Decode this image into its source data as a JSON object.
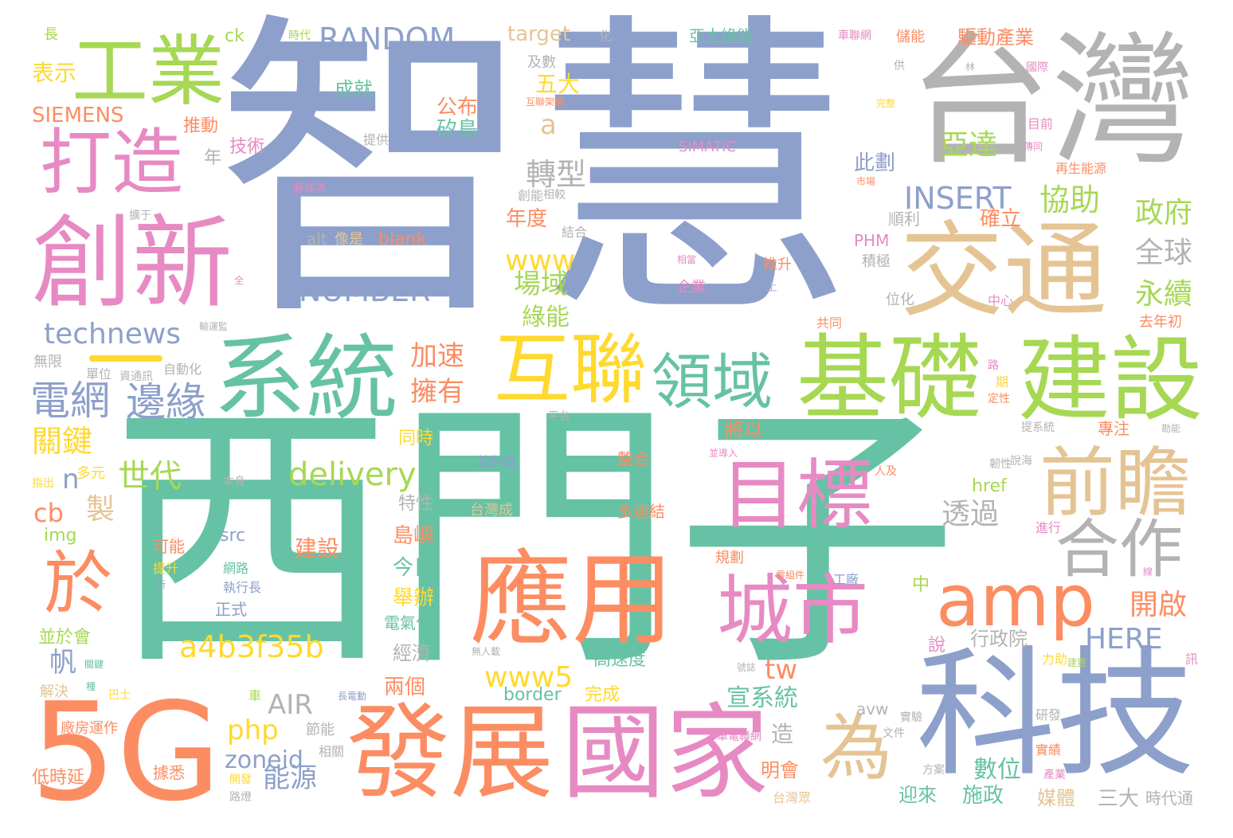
{
  "palette": {
    "green": "#66c2a5",
    "orange": "#fc8d62",
    "blue": "#8da0cb",
    "pink": "#e78ac3",
    "lime": "#a6d854",
    "yellow": "#ffd92f",
    "tan": "#e5c494",
    "gray": "#b3b3b3"
  },
  "words": {
    "w01": "智慧",
    "w02": "西門子",
    "w03": "台灣",
    "w04": "5G",
    "w05": "科技",
    "w06": "工業",
    "w07": "打造",
    "w08": "創新",
    "w09": "交通",
    "w10": "系統",
    "w11": "互聯",
    "w12": "基礎",
    "w13": "建設",
    "w14": "應用",
    "w15": "發展",
    "w16": "國家",
    "w17": "目標",
    "w18": "城市",
    "w19": "前瞻",
    "w20": "amp",
    "w21": "領域",
    "w22": "合作",
    "w23": "於",
    "w24": "為",
    "w25": "電網",
    "w26": "邊緣",
    "w27": "RANDOM",
    "w28": "INSERT",
    "w29": "NUMBER",
    "w30": "technews",
    "w31": "a4b3f35b",
    "w32": "delivery",
    "w33": "www",
    "w34": "www5",
    "w35": "亞達",
    "w36": "轉型",
    "w37": "協助",
    "w38": "政府",
    "w39": "全球",
    "w40": "永續",
    "w41": "場域",
    "w42": "綠能",
    "w43": "關鍵",
    "w44": "世代",
    "w45": "透過",
    "w46": "開啟",
    "w47": "HERE",
    "w48": "宣系統",
    "w49": "AIR",
    "w50": "能源",
    "w51": "php",
    "w52": "zoneid",
    "w53": "tw",
    "w54": "數位",
    "w55": "加速",
    "w56": "擁有",
    "w57": "表示",
    "w58": "SIEMENS",
    "w59": "target",
    "w60": "成就",
    "w61": "公布",
    "w62": "矽島",
    "w63": "五大",
    "w64": "a",
    "w65": "推動",
    "w66": "技術",
    "w67": "此劃",
    "w68": "年度",
    "w69": "確立",
    "w70": "驅動產業",
    "w71": "亞太綠能",
    "w72": "blank",
    "w73": "alt",
    "w74": "像是",
    "w75": "PHM",
    "w76": "SIMATIC",
    "w77": "n",
    "w78": "cb",
    "w79": "製",
    "w80": "帆",
    "w81": "img",
    "w82": "src",
    "w83": "建設",
    "w84": "島嶼",
    "w85": "今日",
    "w86": "舉辦",
    "w87": "經濟",
    "w88": "兩個",
    "w89": "border",
    "w90": "完成",
    "w91": "高速度",
    "w92": "行政院",
    "w93": "明會",
    "w94": "造",
    "w95": "迎來",
    "w96": "施政",
    "w97": "媒體",
    "w98": "三大",
    "w99": "時代通",
    "w100": "avw",
    "w101": "href",
    "w102": "多連結",
    "w103": "整合",
    "w104": "台灣成",
    "w105": "控制器",
    "w106": "將以",
    "w107": "同時",
    "w108": "特性",
    "w109": "並於會",
    "w110": "電氣化",
    "w111": "低時延",
    "w112": "廠房運作",
    "w113": "據悉",
    "w114": "無限",
    "w115": "自動化",
    "w116": "長",
    "w117": "ck",
    "w118": "化",
    "w119": "及數",
    "w120": "年",
    "w121": "提供",
    "w122": "創能",
    "w123": "順利",
    "w124": "積極",
    "w125": "企業",
    "w126": "推升",
    "w127": "上",
    "w128": "位化",
    "w129": "中心",
    "w130": "共同",
    "w131": "去年初",
    "w132": "再生能源",
    "w133": "目前",
    "w134": "專注",
    "w135": "多元",
    "w136": "可能",
    "w137": "提升",
    "w138": "網路",
    "w139": "執行長",
    "w140": "正式",
    "w141": "工廠",
    "w142": "規劃",
    "w143": "中",
    "w144": "說",
    "w145": "進行",
    "w146": "力助",
    "w147": "研發",
    "w148": "實績",
    "w149": "產業",
    "w150": "方案",
    "w151": "相關",
    "w152": "節能",
    "w153": "開發",
    "w154": "路燈",
    "w155": "台灣眾",
    "w156": "文件",
    "w157": "實驗",
    "w158": "車電聯網",
    "w159": "解決",
    "w160": "巴士",
    "w161": "平台",
    "w162": "結合",
    "w163": "本身",
    "w164": "指出",
    "w165": "單位",
    "w166": "資通訊",
    "w167": "韌性",
    "w168": "擴于",
    "w169": "供",
    "w170": "國際",
    "w171": "完整",
    "w172": "儲能",
    "w173": "車聯網",
    "w174": "時代",
    "w175": "互聯架構",
    "w176": "將成為",
    "w177": "相較",
    "w178": "相當",
    "w179": "零組件",
    "w180": "號誌",
    "w181": "建置",
    "w182": "訊",
    "w183": "說海",
    "w184": "人及",
    "w185": "並導入",
    "w186": "提系統",
    "w187": "勘能",
    "w188": "定性",
    "w189": "期",
    "w190": "路",
    "w191": "新",
    "w192": "無人載",
    "w193": "車",
    "w194": "長電動",
    "w195": "輸運監",
    "w196": "關鍵",
    "w197": "種",
    "w198": "全",
    "w199": "林",
    "w200": "市場",
    "w201": "傳同",
    "w202": "線"
  }
}
